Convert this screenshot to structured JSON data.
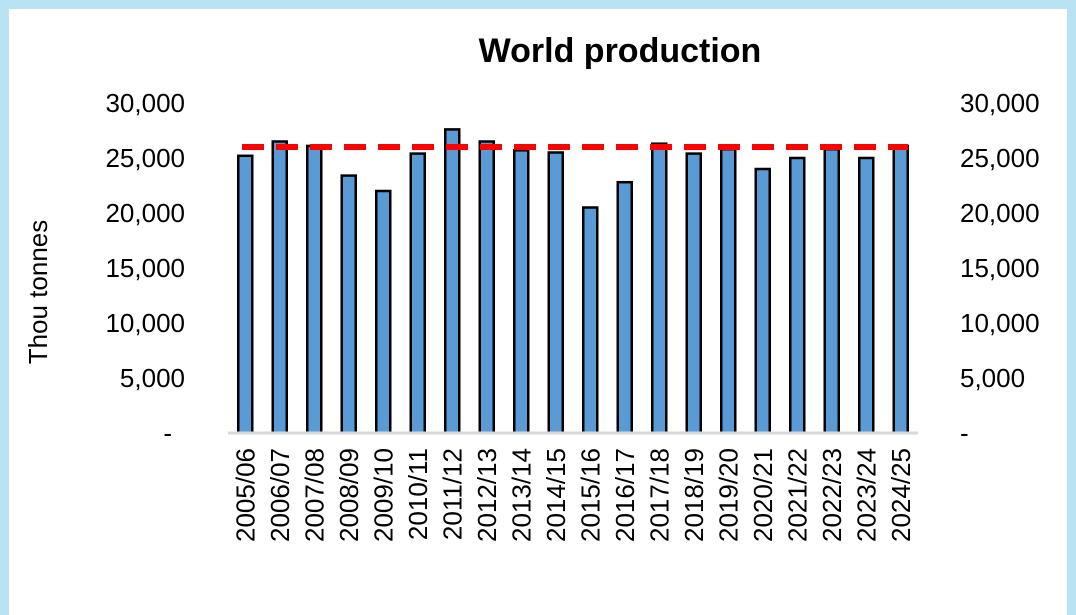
{
  "colors": {
    "background": "#b9e3f3",
    "plot_background": "#ffffff",
    "bar_fill": "#5b9bd5",
    "bar_stroke": "#000000",
    "reference_line": "#ff0000"
  },
  "chart_data": {
    "type": "bar",
    "title": "World production",
    "ylabel": "Thou tonnes",
    "xlabel": "",
    "ylim": [
      0,
      30000
    ],
    "y_ticks": [
      0,
      5000,
      10000,
      15000,
      20000,
      25000,
      30000
    ],
    "y_tick_labels": [
      "-",
      "5,000",
      "10,000",
      "15,000",
      "20,000",
      "25,000",
      "30,000"
    ],
    "secondary_y_axis": true,
    "grid": false,
    "legend": "none",
    "categories": [
      "2005/06",
      "2006/07",
      "2007/08",
      "2008/09",
      "2009/10",
      "2010/11",
      "2011/12",
      "2012/13",
      "2013/14",
      "2014/15",
      "2015/16",
      "2016/17",
      "2017/18",
      "2018/19",
      "2019/20",
      "2020/21",
      "2021/22",
      "2022/23",
      "2023/24",
      "2024/25"
    ],
    "values": [
      25200,
      26500,
      26100,
      23400,
      22000,
      25400,
      27600,
      26500,
      25700,
      25500,
      20500,
      22800,
      26300,
      25400,
      25800,
      24000,
      25000,
      25800,
      25000,
      26100
    ],
    "reference_line": {
      "value": 26000,
      "style": "dashed"
    }
  }
}
